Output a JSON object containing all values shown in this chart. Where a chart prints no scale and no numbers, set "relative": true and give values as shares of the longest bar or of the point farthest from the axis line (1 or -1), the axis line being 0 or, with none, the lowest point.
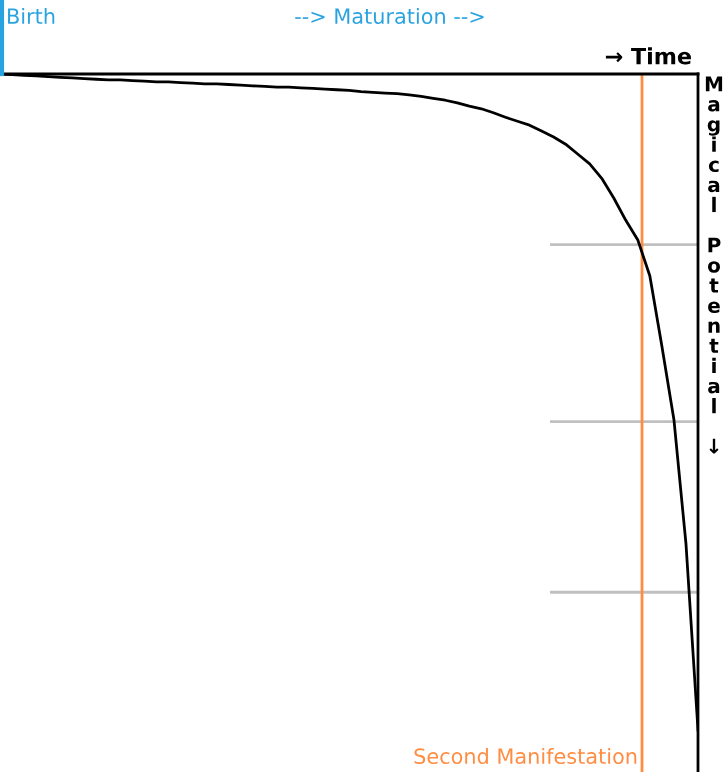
{
  "chart_data": {
    "type": "line",
    "categories": [
      null,
      null,
      null,
      null,
      null,
      null,
      null,
      null,
      null,
      null,
      null,
      null,
      null,
      null,
      null,
      null,
      null,
      null,
      null,
      null,
      null,
      null,
      null,
      null,
      null,
      null,
      null,
      null,
      null,
      null,
      null,
      null,
      null,
      null,
      null,
      null,
      null,
      null,
      null,
      null,
      null,
      null,
      null,
      null,
      null,
      null,
      null,
      null,
      null,
      null,
      null,
      null,
      null,
      null,
      null,
      null,
      null,
      null,
      null
    ],
    "series": [
      {
        "color": "#000000",
        "values": [
          0,
          -0.001,
          -0.002,
          -0.003,
          -0.004,
          -0.005,
          -0.006,
          -0.007,
          -0.008,
          -0.009,
          -0.009,
          -0.01,
          -0.011,
          -0.012,
          -0.012,
          -0.013,
          -0.014,
          -0.015,
          -0.015,
          -0.016,
          -0.017,
          -0.018,
          -0.019,
          -0.02,
          -0.02,
          -0.021,
          -0.022,
          -0.023,
          -0.024,
          -0.025,
          -0.027,
          -0.028,
          -0.029,
          -0.03,
          -0.032,
          -0.034,
          -0.037,
          -0.04,
          -0.044,
          -0.049,
          -0.053,
          -0.059,
          -0.066,
          -0.072,
          -0.078,
          -0.087,
          -0.096,
          -0.107,
          -0.122,
          -0.137,
          -0.159,
          -0.189,
          -0.223,
          -0.253,
          -0.308,
          -0.415,
          -0.527,
          -0.716,
          -1
        ]
      }
    ],
    "relative": true,
    "xlabel": "→ Time",
    "ylabel": "Magical Potential ↓",
    "annotations": [
      "Birth",
      "--> Maturation -->",
      "Second Manifestation"
    ],
    "ref_lines": [
      {
        "axis": "y",
        "value": -0.26,
        "label": null,
        "color": "#c0c0c0"
      },
      {
        "axis": "y",
        "value": -0.53,
        "label": null,
        "color": "#c0c0c0"
      },
      {
        "axis": "y",
        "value": -0.79,
        "label": null,
        "color": "#c0c0c0"
      }
    ],
    "legend": false,
    "line_style": "solid"
  }
}
